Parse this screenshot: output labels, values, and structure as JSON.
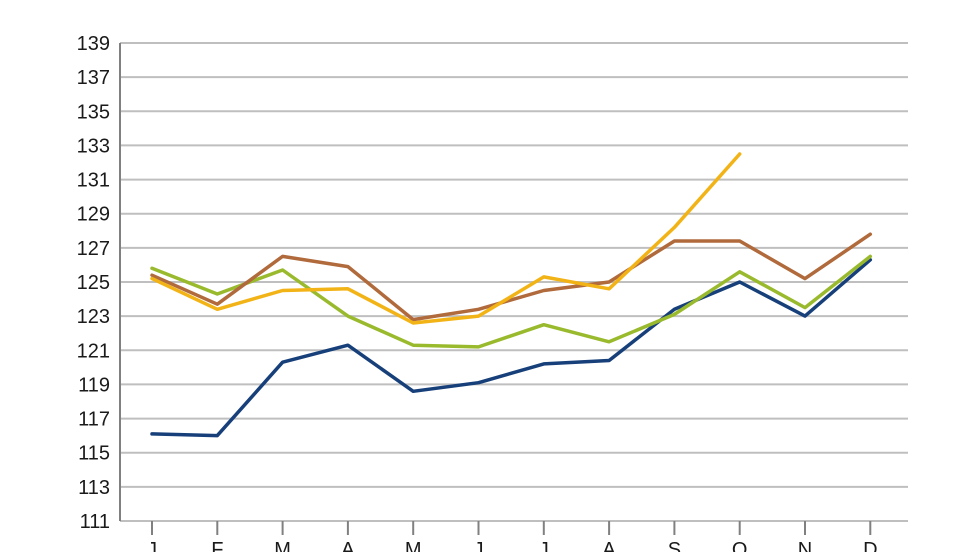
{
  "chart_data": {
    "type": "line",
    "categories": [
      "J",
      "F",
      "M",
      "A",
      "M",
      "J",
      "J",
      "A",
      "S",
      "O",
      "N",
      "D"
    ],
    "ylim": [
      111,
      139
    ],
    "yticks": [
      111,
      113,
      115,
      117,
      119,
      121,
      123,
      125,
      127,
      129,
      131,
      133,
      135,
      137,
      139
    ],
    "grid": true,
    "series": [
      {
        "color": "#17407a",
        "values": [
          116.1,
          116.0,
          120.3,
          121.3,
          118.6,
          119.1,
          120.2,
          120.4,
          123.4,
          125.0,
          123.0,
          126.3
        ]
      },
      {
        "color": "#9aba2e",
        "values": [
          125.8,
          124.3,
          125.7,
          123.0,
          121.3,
          121.2,
          122.5,
          121.5,
          123.1,
          125.6,
          123.5,
          126.5
        ]
      },
      {
        "color": "#b06a3b",
        "values": [
          125.4,
          123.7,
          126.5,
          125.9,
          122.8,
          123.4,
          124.5,
          125.0,
          127.4,
          127.4,
          125.2,
          127.8
        ]
      },
      {
        "color": "#f2b316",
        "values": [
          125.2,
          123.4,
          124.5,
          124.6,
          122.6,
          123.0,
          125.3,
          124.6,
          128.2,
          132.5,
          null,
          null
        ]
      }
    ]
  }
}
